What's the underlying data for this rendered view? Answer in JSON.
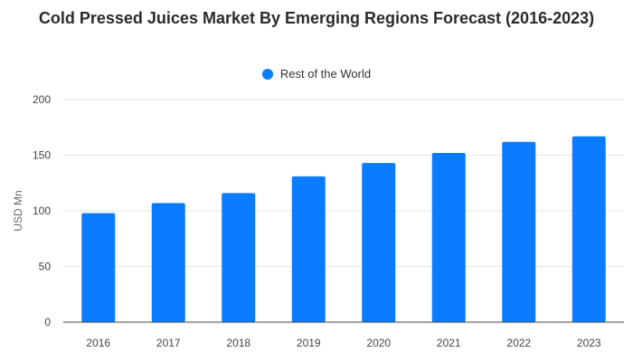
{
  "chart_data": {
    "type": "bar",
    "title": "Cold Pressed Juices Market By Emerging Regions Forecast (2016-2023)",
    "xlabel": "",
    "ylabel": "USD Mn",
    "categories": [
      "2016",
      "2017",
      "2018",
      "2019",
      "2020",
      "2021",
      "2022",
      "2023"
    ],
    "series": [
      {
        "name": "Rest of the World",
        "values": [
          98,
          107,
          116,
          131,
          143,
          152,
          162,
          167
        ],
        "color": "#0a7cff"
      }
    ],
    "ylim": [
      0,
      200
    ],
    "yticks": [
      0,
      50,
      100,
      150,
      200
    ],
    "grid": true,
    "legend_position": "top"
  }
}
